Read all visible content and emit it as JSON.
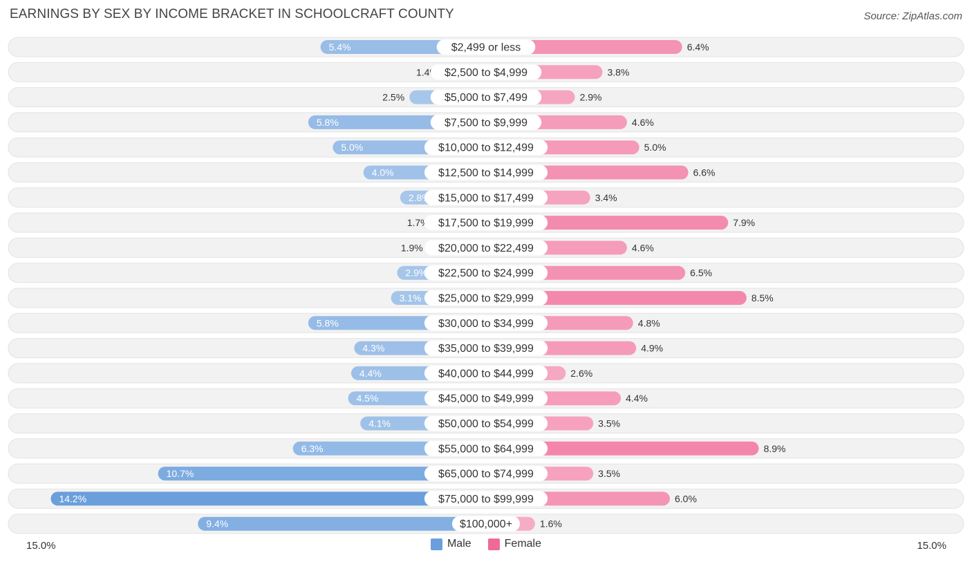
{
  "title": "EARNINGS BY SEX BY INCOME BRACKET IN SCHOOLCRAFT COUNTY",
  "source": "Source: ZipAtlas.com",
  "colors": {
    "male": "#6a9fdc",
    "female": "#f06a97",
    "row_bg": "#f2f2f2",
    "label_bg": "#ffffff"
  },
  "legend": {
    "male": "Male",
    "female": "Female"
  },
  "axis": {
    "left_label": "15.0%",
    "right_label": "15.0%"
  },
  "chart_data": {
    "type": "bar",
    "orientation": "horizontal-diverging",
    "title": "EARNINGS BY SEX BY INCOME BRACKET IN SCHOOLCRAFT COUNTY",
    "xlim": [
      -15,
      15
    ],
    "categories": [
      "$2,499 or less",
      "$2,500 to $4,999",
      "$5,000 to $7,499",
      "$7,500 to $9,999",
      "$10,000 to $12,499",
      "$12,500 to $14,999",
      "$15,000 to $17,499",
      "$17,500 to $19,999",
      "$20,000 to $22,499",
      "$22,500 to $24,999",
      "$25,000 to $29,999",
      "$30,000 to $34,999",
      "$35,000 to $39,999",
      "$40,000 to $44,999",
      "$45,000 to $49,999",
      "$50,000 to $54,999",
      "$55,000 to $64,999",
      "$65,000 to $74,999",
      "$75,000 to $99,999",
      "$100,000+"
    ],
    "series": [
      {
        "name": "Male",
        "values": [
          5.4,
          1.4,
          2.5,
          5.8,
          5.0,
          4.0,
          2.8,
          1.7,
          1.9,
          2.9,
          3.1,
          5.8,
          4.3,
          4.4,
          4.5,
          4.1,
          6.3,
          10.7,
          14.2,
          9.4
        ],
        "labels": [
          "5.4%",
          "1.4%",
          "2.5%",
          "5.8%",
          "5.0%",
          "4.0%",
          "2.8%",
          "1.7%",
          "1.9%",
          "2.9%",
          "3.1%",
          "5.8%",
          "4.3%",
          "4.4%",
          "4.5%",
          "4.1%",
          "6.3%",
          "10.7%",
          "14.2%",
          "9.4%"
        ]
      },
      {
        "name": "Female",
        "values": [
          6.4,
          3.8,
          2.9,
          4.6,
          5.0,
          6.6,
          3.4,
          7.9,
          4.6,
          6.5,
          8.5,
          4.8,
          4.9,
          2.6,
          4.4,
          3.5,
          8.9,
          3.5,
          6.0,
          1.6
        ],
        "labels": [
          "6.4%",
          "3.8%",
          "2.9%",
          "4.6%",
          "5.0%",
          "6.6%",
          "3.4%",
          "7.9%",
          "4.6%",
          "6.5%",
          "8.5%",
          "4.8%",
          "4.9%",
          "2.6%",
          "4.4%",
          "3.5%",
          "8.9%",
          "3.5%",
          "6.0%",
          "1.6%"
        ]
      }
    ],
    "unit": "%",
    "legend_position": "bottom-center"
  }
}
